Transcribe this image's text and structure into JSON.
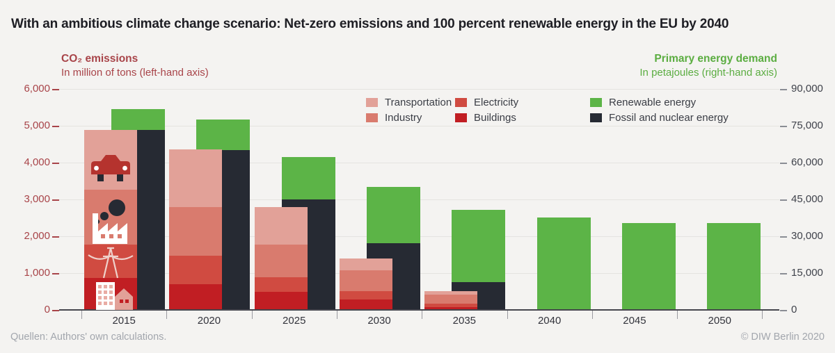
{
  "title": "With an ambitious climate change scenario: Net-zero emissions and 100 percent renewable energy in the EU by 2040",
  "left_axis_header": {
    "title": "CO₂ emissions",
    "subtitle": "In million of tons (left-hand axis)"
  },
  "right_axis_header": {
    "title": "Primary energy demand",
    "subtitle": "In petajoules (right-hand axis)"
  },
  "footer": {
    "source": "Quellen: Authors' own calculations.",
    "copyright": "© DIW Berlin 2020"
  },
  "colors": {
    "background": "#f4f3f1",
    "transportation": "#e2a198",
    "industry": "#d97b6e",
    "electricity": "#d04b41",
    "buildings": "#c11e23",
    "renewable": "#5cb447",
    "fossil": "#262a33",
    "left_axis_text": "#a84449",
    "right_header_text": "#5bad41"
  },
  "legend": {
    "columns": [
      [
        {
          "label": "Transportation",
          "color": "#e2a198"
        },
        {
          "label": "Industry",
          "color": "#d97b6e"
        }
      ],
      [
        {
          "label": "Electricity",
          "color": "#d04b41"
        },
        {
          "label": "Buildings",
          "color": "#c11e23"
        }
      ],
      [
        {
          "label": "Renewable energy",
          "color": "#5cb447"
        },
        {
          "label": "Fossil and nuclear energy",
          "color": "#262a33"
        }
      ]
    ]
  },
  "chart_data": {
    "type": "bar",
    "categories": [
      "2015",
      "2020",
      "2025",
      "2030",
      "2035",
      "2040",
      "2045",
      "2050"
    ],
    "left_axis": {
      "label": "CO₂ emissions in million of tons",
      "range": [
        0,
        6000
      ],
      "tick_step": 1000,
      "tick_labels": [
        "0",
        "1,000",
        "2,000",
        "3,000",
        "4,000",
        "5,000",
        "6,000"
      ]
    },
    "right_axis": {
      "label": "Primary energy demand in petajoules",
      "range": [
        0,
        90000
      ],
      "tick_step": 15000,
      "tick_labels": [
        "0",
        "15,000",
        "30,000",
        "45,000",
        "60,000",
        "75,000",
        "90,000"
      ]
    },
    "grid": true,
    "legend_position": "top-right-inside",
    "emissions_series": [
      {
        "name": "Transportation",
        "color": "#e2a198",
        "values": [
          1620,
          1560,
          1020,
          310,
          100,
          0,
          0,
          0
        ]
      },
      {
        "name": "Industry",
        "color": "#d97b6e",
        "values": [
          1480,
          1310,
          880,
          570,
          240,
          0,
          0,
          0
        ]
      },
      {
        "name": "Electricity",
        "color": "#d04b41",
        "values": [
          910,
          780,
          400,
          230,
          100,
          0,
          0,
          0
        ]
      },
      {
        "name": "Buildings",
        "color": "#c11e23",
        "values": [
          870,
          700,
          490,
          280,
          70,
          0,
          0,
          0
        ]
      }
    ],
    "emissions_totals": [
      4880,
      4350,
      2790,
      1390,
      510,
      0,
      0,
      0
    ],
    "energy_series": [
      {
        "name": "Renewable energy",
        "color": "#5cb447",
        "values": [
          8500,
          12300,
          17400,
          22800,
          29300,
          37600,
          35300,
          35300
        ]
      },
      {
        "name": "Fossil and nuclear energy",
        "color": "#262a33",
        "values": [
          73200,
          65200,
          45000,
          27300,
          11400,
          0,
          0,
          0
        ]
      }
    ],
    "energy_totals": [
      81700,
      77500,
      62400,
      50100,
      40700,
      37600,
      35300,
      35300
    ]
  }
}
